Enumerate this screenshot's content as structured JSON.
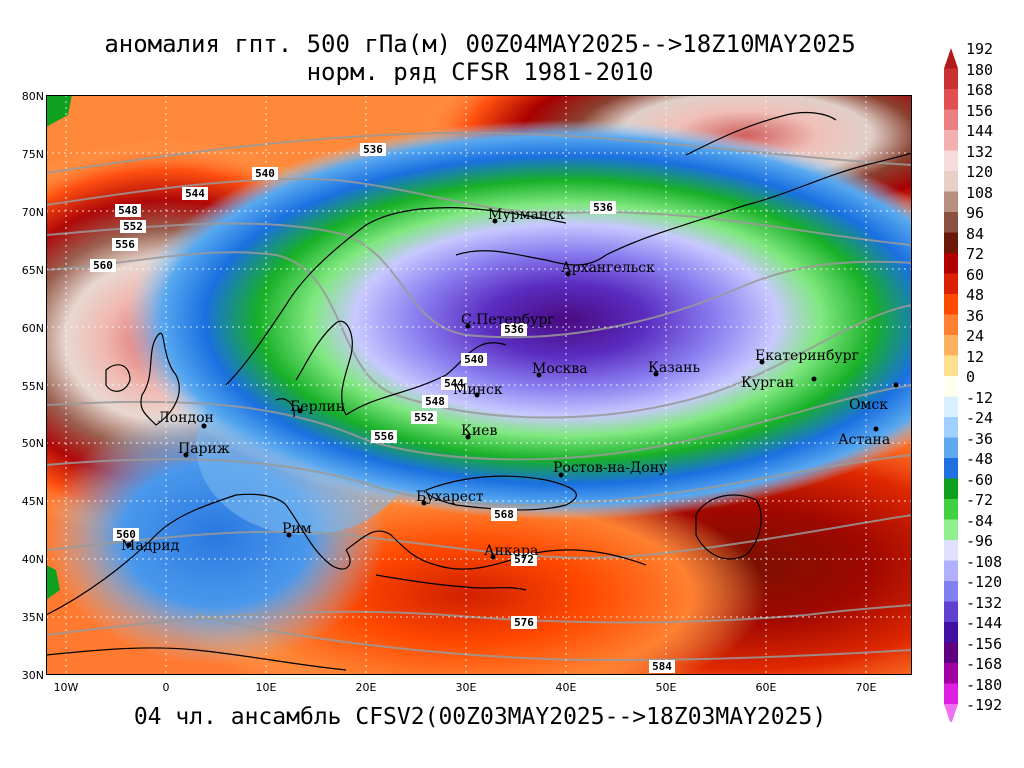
{
  "title_line1": "аномалия гпт. 500 гПа(м) 00Z04MAY2025-->18Z10MAY2025",
  "title_line2": "норм. ряд CFSR 1981-2010",
  "footer": "04 чл. ансамбль CFSV2(00Z03MAY2025-->18Z03MAY2025)",
  "lat_labels": [
    "80N",
    "75N",
    "70N",
    "65N",
    "60N",
    "55N",
    "50N",
    "45N",
    "40N",
    "35N",
    "30N"
  ],
  "lon_labels": [
    "10W",
    "0",
    "10E",
    "20E",
    "30E",
    "40E",
    "50E",
    "60E",
    "70E"
  ],
  "colorbar_labels": [
    "192",
    "180",
    "168",
    "156",
    "144",
    "132",
    "120",
    "108",
    "96",
    "84",
    "72",
    "60",
    "48",
    "36",
    "24",
    "12",
    "0",
    "-12",
    "-24",
    "-36",
    "-48",
    "-60",
    "-72",
    "-84",
    "-96",
    "-108",
    "-120",
    "-132",
    "-144",
    "-156",
    "-168",
    "-180",
    "-192"
  ],
  "colorbar_colors": [
    "#b01a1a",
    "#c83232",
    "#e05050",
    "#ec8080",
    "#f4b0b0",
    "#f6dcdc",
    "#e8d0c8",
    "#b89080",
    "#8a5040",
    "#6a1808",
    "#b00000",
    "#dc2000",
    "#ff4a00",
    "#ff8030",
    "#ffb060",
    "#ffe090",
    "#fffff0",
    "#d8f0ff",
    "#a0d0ff",
    "#60a8f0",
    "#2070e0",
    "#10a020",
    "#40d040",
    "#90f090",
    "#e0e0ff",
    "#b0b0ff",
    "#8080f0",
    "#6040d0",
    "#4010a0",
    "#600080",
    "#a000a0",
    "#e020e0",
    "#f070f0"
  ],
  "contour_labels": [
    "536",
    "540",
    "544",
    "548",
    "552",
    "556",
    "560",
    "536",
    "536",
    "540",
    "544",
    "548",
    "552",
    "556",
    "560",
    "568",
    "572",
    "576",
    "584"
  ],
  "cities": [
    "Мурманск",
    "Архангельск",
    "С.Петербург",
    "Москва",
    "Казань",
    "Екатеринбург",
    "Курган",
    "Омск",
    "Астана",
    "Минск",
    "Киев",
    "Берлин",
    "Лондон",
    "Париж",
    "Ростов-на-Дону",
    "Бухарест",
    "Рим",
    "Мадрид",
    "Анкара"
  ]
}
